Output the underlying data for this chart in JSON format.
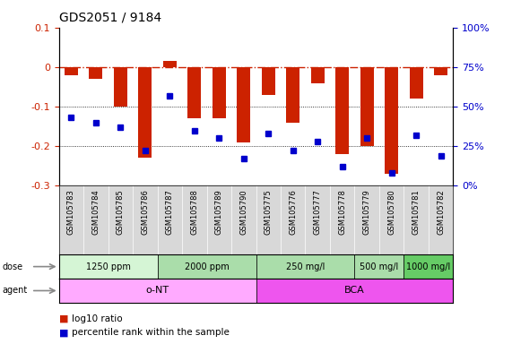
{
  "title": "GDS2051 / 9184",
  "samples": [
    "GSM105783",
    "GSM105784",
    "GSM105785",
    "GSM105786",
    "GSM105787",
    "GSM105788",
    "GSM105789",
    "GSM105790",
    "GSM105775",
    "GSM105776",
    "GSM105777",
    "GSM105778",
    "GSM105779",
    "GSM105780",
    "GSM105781",
    "GSM105782"
  ],
  "log10_ratio": [
    -0.02,
    -0.03,
    -0.1,
    -0.23,
    0.015,
    -0.13,
    -0.13,
    -0.19,
    -0.07,
    -0.14,
    -0.04,
    -0.22,
    -0.2,
    -0.27,
    -0.08,
    -0.02
  ],
  "percentile_rank": [
    43,
    40,
    37,
    22,
    57,
    35,
    30,
    17,
    33,
    22,
    28,
    12,
    30,
    8,
    32,
    19
  ],
  "dose_groups": [
    {
      "label": "1250 ppm",
      "start": 0,
      "end": 4,
      "color": "#d5f5d5"
    },
    {
      "label": "2000 ppm",
      "start": 4,
      "end": 8,
      "color": "#aaddaa"
    },
    {
      "label": "250 mg/l",
      "start": 8,
      "end": 12,
      "color": "#aaddaa"
    },
    {
      "label": "500 mg/l",
      "start": 12,
      "end": 14,
      "color": "#aaddaa"
    },
    {
      "label": "1000 mg/l",
      "start": 14,
      "end": 16,
      "color": "#66cc66"
    }
  ],
  "agent_groups": [
    {
      "label": "o-NT",
      "start": 0,
      "end": 8,
      "color": "#ffaaff"
    },
    {
      "label": "BCA",
      "start": 8,
      "end": 16,
      "color": "#ee55ee"
    }
  ],
  "bar_color": "#cc2200",
  "dot_color": "#0000cc",
  "ylim_left": [
    -0.3,
    0.1
  ],
  "ylim_right": [
    0,
    100
  ],
  "dotted_lines": [
    -0.1,
    -0.2
  ],
  "title_fontsize": 10,
  "tick_color_left": "#cc2200",
  "tick_color_right": "#0000cc",
  "right_tick_labels": [
    "0%",
    "25%",
    "50%",
    "75%",
    "100%"
  ],
  "right_tick_values": [
    0,
    25,
    50,
    75,
    100
  ],
  "left_tick_values": [
    -0.3,
    -0.2,
    -0.1,
    0.0,
    0.1
  ],
  "left_tick_labels": [
    "-0.3",
    "-0.2",
    "-0.1",
    "0",
    "0.1"
  ]
}
